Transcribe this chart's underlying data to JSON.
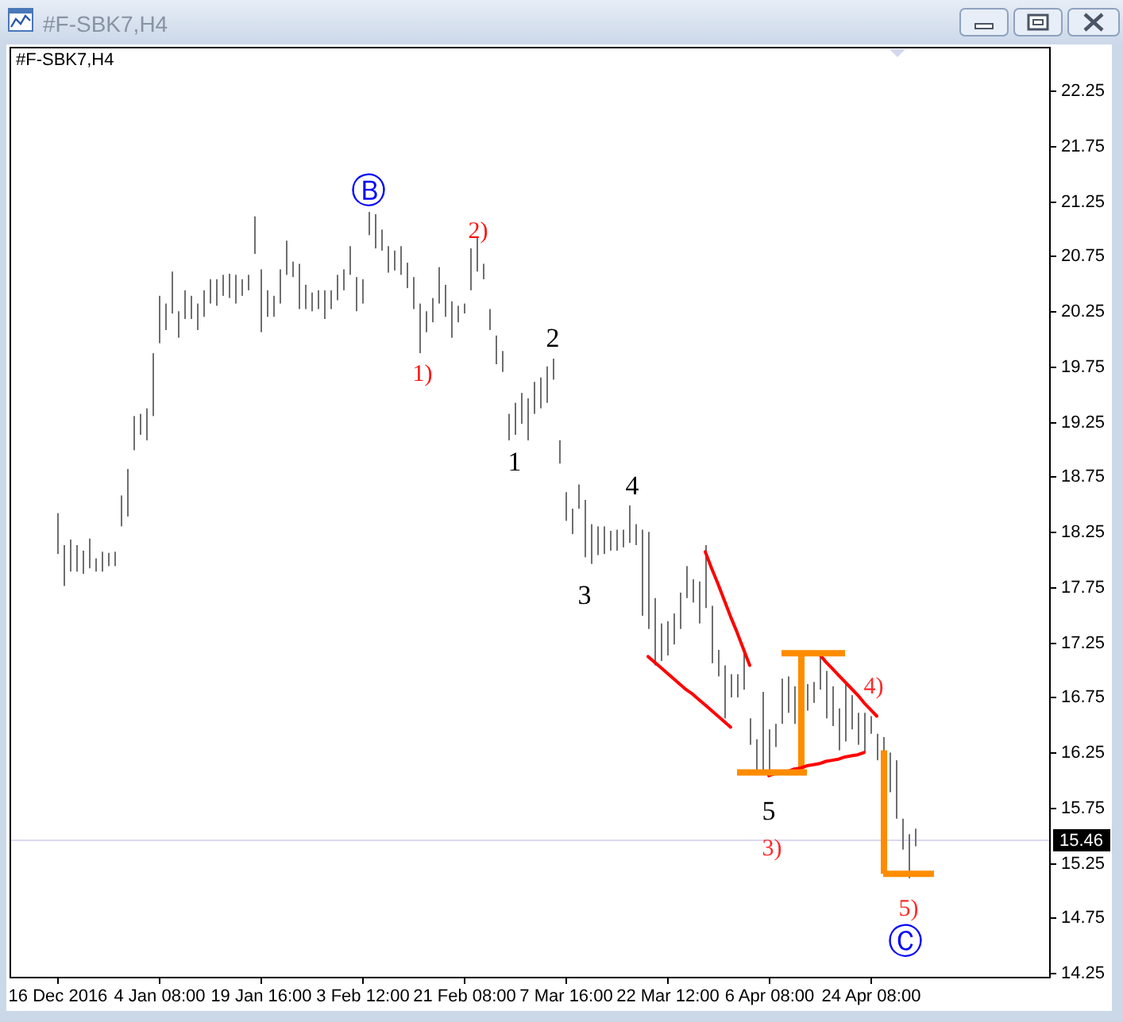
{
  "chart_data": {
    "type": "bar",
    "title": "#F-SBK7,H4",
    "categories": [
      "16 Dec 2016",
      null,
      null,
      null,
      null,
      null,
      null,
      null,
      null,
      null,
      null,
      null,
      null,
      null,
      null,
      null,
      "4 Jan 08:00",
      null,
      null,
      null,
      null,
      null,
      null,
      null,
      null,
      null,
      null,
      null,
      null,
      null,
      null,
      null,
      "19 Jan 16:00",
      null,
      null,
      null,
      null,
      null,
      null,
      null,
      null,
      null,
      null,
      null,
      null,
      null,
      null,
      null,
      "3 Feb 12:00",
      null,
      null,
      null,
      null,
      null,
      null,
      null,
      null,
      null,
      null,
      null,
      null,
      null,
      null,
      null,
      "21 Feb 08:00",
      null,
      null,
      null,
      null,
      null,
      null,
      null,
      null,
      null,
      null,
      null,
      null,
      null,
      null,
      null,
      "7 Mar 16:00",
      null,
      null,
      null,
      null,
      null,
      null,
      null,
      null,
      null,
      null,
      null,
      null,
      null,
      null,
      null,
      "22 Mar 12:00",
      null,
      null,
      null,
      null,
      null,
      null,
      null,
      null,
      null,
      null,
      null,
      null,
      null,
      null,
      null,
      "6 Apr 08:00",
      null,
      null,
      null,
      null,
      null,
      null,
      null,
      null,
      null,
      null,
      null,
      null,
      null,
      null,
      null,
      "24 Apr 08:00",
      null,
      null,
      null,
      null,
      null,
      null,
      null,
      null,
      null,
      null,
      null,
      null,
      null,
      null,
      null,
      null,
      null,
      null,
      null,
      null,
      null,
      null,
      null,
      null,
      null,
      null,
      null,
      null
    ],
    "series": [
      {
        "color": "#6f6f6f",
        "base": [
          18.05,
          17.76,
          17.89,
          17.89,
          17.87,
          17.92,
          17.89,
          17.89,
          17.94,
          17.94,
          18.3,
          18.39,
          18.99,
          19.13,
          19.08,
          19.3,
          19.96,
          20.08,
          20.23,
          20.01,
          20.18,
          20.18,
          20.08,
          20.2,
          20.32,
          20.3,
          20.39,
          20.37,
          20.32,
          20.39,
          20.44,
          20.77,
          20.06,
          20.2,
          20.2,
          20.32,
          20.58,
          20.56,
          20.27,
          20.27,
          20.25,
          20.27,
          20.18,
          20.27,
          20.35,
          20.44,
          20.58,
          20.25,
          20.32,
          20.94,
          20.82,
          20.8,
          20.6,
          20.62,
          20.58,
          20.46,
          20.27,
          19.87,
          20.06,
          20.15,
          20.32,
          20.2,
          20.01,
          20.15,
          20.23,
          20.44,
          20.61,
          20.54,
          20.08,
          19.77,
          19.7,
          19.08,
          19.13,
          19.23,
          19.08,
          19.32,
          19.37,
          19.42,
          19.63,
          18.87,
          18.35,
          18.23,
          18.46,
          18.02,
          17.96,
          18.04,
          18.05,
          18.08,
          18.08,
          18.11,
          18.15,
          18.13,
          17.49,
          17.37,
          17.04,
          17.08,
          17.13,
          17.23,
          17.37,
          17.65,
          17.61,
          17.42,
          17.56,
          17.06,
          16.94,
          16.56,
          16.75,
          16.75,
          16.82,
          16.32,
          16.08,
          16.08,
          16.04,
          16.3,
          16.51,
          16.61,
          16.51,
          null,
          16.63,
          16.7,
          16.82,
          16.56,
          16.49,
          16.27,
          16.35,
          16.46,
          16.32,
          16.25,
          16.42,
          16.18,
          16.18,
          15.89,
          15.65,
          15.37,
          15.11,
          15.4,
          null,
          null,
          null,
          null,
          null,
          null,
          null,
          null,
          null,
          null,
          null,
          null,
          null,
          null,
          null,
          null,
          null,
          null,
          null,
          null,
          null
        ],
        "values": [
          0.37,
          0.37,
          0.29,
          0.24,
          0.21,
          0.27,
          0.12,
          0.18,
          0.12,
          0.13,
          0.28,
          0.43,
          0.31,
          0.19,
          0.29,
          0.57,
          0.43,
          0.24,
          0.38,
          0.24,
          0.26,
          0.21,
          0.24,
          0.24,
          0.22,
          0.24,
          0.19,
          0.22,
          0.26,
          0.15,
          0.14,
          0.34,
          0.57,
          0.24,
          0.19,
          0.31,
          0.31,
          0.14,
          0.41,
          0.22,
          0.17,
          0.17,
          0.26,
          0.17,
          0.23,
          0.19,
          0.26,
          0.31,
          0.22,
          0.21,
          0.31,
          0.19,
          0.24,
          0.18,
          0.26,
          0.23,
          0.29,
          0.45,
          0.19,
          0.22,
          0.33,
          0.29,
          0.33,
          0.15,
          0.09,
          0.38,
          0.31,
          0.14,
          0.19,
          0.26,
          0.19,
          0.24,
          0.29,
          0.28,
          0.38,
          0.29,
          0.28,
          0.33,
          0.19,
          0.21,
          0.26,
          0.23,
          0.22,
          0.52,
          0.36,
          0.26,
          0.25,
          0.18,
          0.19,
          0.16,
          0.34,
          0.19,
          0.78,
          0.88,
          0.61,
          0.34,
          0.31,
          0.28,
          0.33,
          0.29,
          0.21,
          0.38,
          0.57,
          0.52,
          0.24,
          0.48,
          0.21,
          0.21,
          0.36,
          0.24,
          0.29,
          0.72,
          0.42,
          0.21,
          0.41,
          0.33,
          0.34,
          null,
          0.24,
          0.19,
          0.31,
          0.43,
          0.36,
          0.38,
          0.52,
          0.31,
          0.29,
          0.36,
          0.16,
          0.24,
          0.21,
          0.36,
          0.53,
          0.28,
          0.4,
          0.16,
          null,
          null,
          null,
          null,
          null,
          null,
          null,
          null,
          null,
          null,
          null,
          null,
          null,
          null,
          null,
          null,
          null,
          null,
          null,
          null,
          null
        ]
      },
      {
        "color": "#ff8c00",
        "base": [
          null,
          null,
          null,
          null,
          null,
          null,
          null,
          null,
          null,
          null,
          null,
          null,
          null,
          null,
          null,
          null,
          null,
          null,
          null,
          null,
          null,
          null,
          null,
          null,
          null,
          null,
          null,
          null,
          null,
          null,
          null,
          null,
          null,
          null,
          null,
          null,
          null,
          null,
          null,
          null,
          null,
          null,
          null,
          null,
          null,
          null,
          null,
          null,
          null,
          null,
          null,
          null,
          null,
          null,
          null,
          null,
          null,
          null,
          null,
          null,
          null,
          null,
          null,
          null,
          null,
          null,
          null,
          null,
          null,
          null,
          null,
          null,
          null,
          null,
          null,
          null,
          null,
          null,
          null,
          null,
          null,
          null,
          null,
          null,
          null,
          null,
          null,
          null,
          null,
          null,
          null,
          null,
          null,
          null,
          null,
          null,
          null,
          null,
          null,
          null,
          null,
          null,
          null,
          null,
          null,
          null,
          null,
          null,
          null,
          null,
          null,
          null,
          null,
          null,
          null,
          null,
          null,
          16.07,
          null,
          null,
          null,
          null,
          null,
          null,
          null,
          null,
          null,
          null,
          null,
          null,
          15.15,
          null,
          null,
          null,
          null,
          null,
          null,
          null,
          null,
          null,
          null,
          null,
          null,
          null,
          null,
          null,
          null,
          null,
          null,
          null,
          null,
          null,
          null,
          null,
          null,
          null,
          null
        ],
        "values": [
          null,
          null,
          null,
          null,
          null,
          null,
          null,
          null,
          null,
          null,
          null,
          null,
          null,
          null,
          null,
          null,
          null,
          null,
          null,
          null,
          null,
          null,
          null,
          null,
          null,
          null,
          null,
          null,
          null,
          null,
          null,
          null,
          null,
          null,
          null,
          null,
          null,
          null,
          null,
          null,
          null,
          null,
          null,
          null,
          null,
          null,
          null,
          null,
          null,
          null,
          null,
          null,
          null,
          null,
          null,
          null,
          null,
          null,
          null,
          null,
          null,
          null,
          null,
          null,
          null,
          null,
          null,
          null,
          null,
          null,
          null,
          null,
          null,
          null,
          null,
          null,
          null,
          null,
          null,
          null,
          null,
          null,
          null,
          null,
          null,
          null,
          null,
          null,
          null,
          null,
          null,
          null,
          null,
          null,
          null,
          null,
          null,
          null,
          null,
          null,
          null,
          null,
          null,
          null,
          null,
          null,
          null,
          null,
          null,
          null,
          null,
          null,
          null,
          null,
          null,
          null,
          null,
          1.08,
          null,
          null,
          null,
          null,
          null,
          null,
          null,
          null,
          null,
          null,
          null,
          null,
          1.12,
          null,
          null,
          null,
          null,
          null,
          null,
          null,
          null,
          null,
          null,
          null,
          null,
          null,
          null,
          null,
          null,
          null,
          null,
          null,
          null,
          null,
          null,
          null,
          null,
          null,
          null
        ]
      },
      {
        "type": "line",
        "color": "#ff0000",
        "values": [
          null,
          null,
          null,
          null,
          null,
          null,
          null,
          null,
          null,
          null,
          null,
          null,
          null,
          null,
          null,
          null,
          null,
          null,
          null,
          null,
          null,
          null,
          null,
          null,
          null,
          null,
          null,
          null,
          null,
          null,
          null,
          null,
          null,
          null,
          null,
          null,
          null,
          null,
          null,
          null,
          null,
          null,
          null,
          null,
          null,
          null,
          null,
          null,
          null,
          null,
          null,
          null,
          null,
          null,
          null,
          null,
          null,
          null,
          null,
          null,
          null,
          null,
          null,
          null,
          null,
          null,
          null,
          null,
          null,
          null,
          null,
          null,
          null,
          null,
          null,
          null,
          null,
          null,
          null,
          null,
          null,
          null,
          null,
          null,
          null,
          null,
          null,
          null,
          null,
          null,
          null,
          null,
          null,
          null,
          null,
          null,
          null,
          null,
          null,
          null,
          null,
          null,
          18.07,
          17.92,
          17.78,
          17.63,
          17.48,
          17.34,
          17.19,
          17.04,
          null,
          null,
          null,
          null,
          null,
          null,
          null,
          null,
          null,
          null,
          null,
          null,
          null,
          null,
          null,
          null,
          null,
          null,
          null,
          null,
          null,
          null,
          null,
          null,
          null,
          null,
          null,
          null,
          null,
          null,
          null,
          null,
          null,
          null,
          null,
          null,
          null,
          null,
          null,
          null,
          null,
          null,
          null,
          null,
          null,
          null,
          null
        ]
      },
      {
        "type": "line",
        "color": "#ff0000",
        "values": [
          null,
          null,
          null,
          null,
          null,
          null,
          null,
          null,
          null,
          null,
          null,
          null,
          null,
          null,
          null,
          null,
          null,
          null,
          null,
          null,
          null,
          null,
          null,
          null,
          null,
          null,
          null,
          null,
          null,
          null,
          null,
          null,
          null,
          null,
          null,
          null,
          null,
          null,
          null,
          null,
          null,
          null,
          null,
          null,
          null,
          null,
          null,
          null,
          null,
          null,
          null,
          null,
          null,
          null,
          null,
          null,
          null,
          null,
          null,
          null,
          null,
          null,
          null,
          null,
          null,
          null,
          null,
          null,
          null,
          null,
          null,
          null,
          null,
          null,
          null,
          null,
          null,
          null,
          null,
          null,
          null,
          null,
          null,
          null,
          null,
          null,
          null,
          null,
          null,
          null,
          null,
          null,
          null,
          17.12,
          17.07,
          17.02,
          16.97,
          16.92,
          16.87,
          16.82,
          16.78,
          16.73,
          16.68,
          16.63,
          16.58,
          16.53,
          16.48,
          null,
          null,
          null,
          null,
          null,
          null,
          null,
          null,
          null,
          null,
          null,
          null,
          null,
          null,
          null,
          null,
          null,
          null,
          null,
          null,
          null,
          null,
          null,
          null,
          null,
          null,
          null,
          null,
          null,
          null,
          null,
          null,
          null,
          null,
          null,
          null,
          null,
          null,
          null,
          null,
          null,
          null,
          null,
          null,
          null,
          null,
          null,
          null,
          null,
          null
        ]
      },
      {
        "type": "line",
        "color": "#ff0000",
        "values": [
          null,
          null,
          null,
          null,
          null,
          null,
          null,
          null,
          null,
          null,
          null,
          null,
          null,
          null,
          null,
          null,
          null,
          null,
          null,
          null,
          null,
          null,
          null,
          null,
          null,
          null,
          null,
          null,
          null,
          null,
          null,
          null,
          null,
          null,
          null,
          null,
          null,
          null,
          null,
          null,
          null,
          null,
          null,
          null,
          null,
          null,
          null,
          null,
          null,
          null,
          null,
          null,
          null,
          null,
          null,
          null,
          null,
          null,
          null,
          null,
          null,
          null,
          null,
          null,
          null,
          null,
          null,
          null,
          null,
          null,
          null,
          null,
          null,
          null,
          null,
          null,
          null,
          null,
          null,
          null,
          null,
          null,
          null,
          null,
          null,
          null,
          null,
          null,
          null,
          null,
          null,
          null,
          null,
          null,
          null,
          null,
          null,
          null,
          null,
          null,
          null,
          null,
          null,
          null,
          null,
          null,
          null,
          null,
          null,
          null,
          null,
          null,
          null,
          null,
          null,
          null,
          null,
          null,
          null,
          null,
          17.14,
          17.07,
          17.01,
          16.95,
          16.89,
          16.83,
          16.77,
          16.7,
          16.64,
          16.58,
          null,
          null,
          null,
          null,
          null,
          null,
          null,
          null,
          null,
          null,
          null,
          null,
          null,
          null,
          null,
          null,
          null,
          null,
          null,
          null,
          null,
          null,
          null,
          null,
          null,
          null,
          null
        ]
      },
      {
        "type": "line",
        "color": "#ff0000",
        "values": [
          null,
          null,
          null,
          null,
          null,
          null,
          null,
          null,
          null,
          null,
          null,
          null,
          null,
          null,
          null,
          null,
          null,
          null,
          null,
          null,
          null,
          null,
          null,
          null,
          null,
          null,
          null,
          null,
          null,
          null,
          null,
          null,
          null,
          null,
          null,
          null,
          null,
          null,
          null,
          null,
          null,
          null,
          null,
          null,
          null,
          null,
          null,
          null,
          null,
          null,
          null,
          null,
          null,
          null,
          null,
          null,
          null,
          null,
          null,
          null,
          null,
          null,
          null,
          null,
          null,
          null,
          null,
          null,
          null,
          null,
          null,
          null,
          null,
          null,
          null,
          null,
          null,
          null,
          null,
          null,
          null,
          null,
          null,
          null,
          null,
          null,
          null,
          null,
          null,
          null,
          null,
          null,
          null,
          null,
          null,
          null,
          null,
          null,
          null,
          null,
          null,
          null,
          null,
          null,
          null,
          null,
          null,
          null,
          null,
          null,
          null,
          null,
          16.04,
          16.06,
          16.07,
          16.08,
          16.1,
          16.11,
          16.13,
          16.14,
          16.15,
          16.17,
          16.18,
          16.19,
          16.21,
          16.22,
          16.23,
          16.25,
          null,
          null,
          null,
          null,
          null,
          null,
          null,
          null,
          null,
          null,
          null,
          null,
          null,
          null,
          null,
          null,
          null,
          null,
          null,
          null,
          null,
          null,
          null,
          null,
          null,
          null,
          null,
          null,
          null
        ]
      },
      {
        "type": "line",
        "color": "#ff8c00",
        "values": [
          null,
          null,
          null,
          null,
          null,
          null,
          null,
          null,
          null,
          null,
          null,
          null,
          null,
          null,
          null,
          null,
          null,
          null,
          null,
          null,
          null,
          null,
          null,
          null,
          null,
          null,
          null,
          null,
          null,
          null,
          null,
          null,
          null,
          null,
          null,
          null,
          null,
          null,
          null,
          null,
          null,
          null,
          null,
          null,
          null,
          null,
          null,
          null,
          null,
          null,
          null,
          null,
          null,
          null,
          null,
          null,
          null,
          null,
          null,
          null,
          null,
          null,
          null,
          null,
          null,
          null,
          null,
          null,
          null,
          null,
          null,
          null,
          null,
          null,
          null,
          null,
          null,
          null,
          null,
          null,
          null,
          null,
          null,
          null,
          null,
          null,
          null,
          null,
          null,
          null,
          null,
          null,
          null,
          null,
          null,
          null,
          null,
          null,
          null,
          null,
          null,
          null,
          null,
          null,
          null,
          null,
          null,
          16.07,
          16.07,
          16.07,
          16.07,
          16.07,
          16.07,
          16.07,
          16.07,
          16.07,
          16.07,
          16.07,
          16.07,
          null,
          null,
          null,
          null,
          null,
          null,
          null,
          null,
          null,
          null,
          null,
          null,
          null,
          null,
          null,
          null,
          null,
          null,
          null,
          null,
          null,
          null,
          null,
          null,
          null,
          null,
          null,
          null,
          null,
          null,
          null,
          null,
          null,
          null,
          null,
          null,
          null,
          null
        ]
      },
      {
        "type": "line",
        "color": "#ff8c00",
        "values": [
          null,
          null,
          null,
          null,
          null,
          null,
          null,
          null,
          null,
          null,
          null,
          null,
          null,
          null,
          null,
          null,
          null,
          null,
          null,
          null,
          null,
          null,
          null,
          null,
          null,
          null,
          null,
          null,
          null,
          null,
          null,
          null,
          null,
          null,
          null,
          null,
          null,
          null,
          null,
          null,
          null,
          null,
          null,
          null,
          null,
          null,
          null,
          null,
          null,
          null,
          null,
          null,
          null,
          null,
          null,
          null,
          null,
          null,
          null,
          null,
          null,
          null,
          null,
          null,
          null,
          null,
          null,
          null,
          null,
          null,
          null,
          null,
          null,
          null,
          null,
          null,
          null,
          null,
          null,
          null,
          null,
          null,
          null,
          null,
          null,
          null,
          null,
          null,
          null,
          null,
          null,
          null,
          null,
          null,
          null,
          null,
          null,
          null,
          null,
          null,
          null,
          null,
          null,
          null,
          null,
          null,
          null,
          null,
          null,
          null,
          null,
          null,
          null,
          null,
          17.15,
          17.15,
          17.15,
          17.15,
          17.15,
          17.15,
          17.15,
          17.15,
          17.15,
          17.15,
          17.15,
          null,
          null,
          null,
          null,
          null,
          null,
          null,
          null,
          null,
          null,
          null,
          null,
          null,
          null,
          null,
          null,
          null,
          null,
          null,
          null,
          null,
          null,
          null,
          null,
          null,
          null,
          null,
          null,
          null,
          null,
          null,
          null
        ]
      },
      {
        "type": "line",
        "color": "#ff8c00",
        "values": [
          null,
          null,
          null,
          null,
          null,
          null,
          null,
          null,
          null,
          null,
          null,
          null,
          null,
          null,
          null,
          null,
          null,
          null,
          null,
          null,
          null,
          null,
          null,
          null,
          null,
          null,
          null,
          null,
          null,
          null,
          null,
          null,
          null,
          null,
          null,
          null,
          null,
          null,
          null,
          null,
          null,
          null,
          null,
          null,
          null,
          null,
          null,
          null,
          null,
          null,
          null,
          null,
          null,
          null,
          null,
          null,
          null,
          null,
          null,
          null,
          null,
          null,
          null,
          null,
          null,
          null,
          null,
          null,
          null,
          null,
          null,
          null,
          null,
          null,
          null,
          null,
          null,
          null,
          null,
          null,
          null,
          null,
          null,
          null,
          null,
          null,
          null,
          null,
          null,
          null,
          null,
          null,
          null,
          null,
          null,
          null,
          null,
          null,
          null,
          null,
          null,
          null,
          null,
          null,
          null,
          null,
          null,
          null,
          null,
          null,
          null,
          null,
          null,
          null,
          null,
          null,
          null,
          null,
          null,
          null,
          null,
          null,
          null,
          null,
          null,
          null,
          null,
          null,
          null,
          null,
          15.15,
          15.15,
          15.15,
          15.15,
          15.15,
          15.15,
          15.15,
          15.15,
          15.15,
          null,
          null,
          null,
          null,
          null,
          null,
          null,
          null,
          null,
          null,
          null,
          null,
          null,
          null,
          null,
          null,
          null,
          null
        ]
      }
    ],
    "ylim": [
      14.21,
      22.64
    ],
    "yticks": [
      14.25,
      14.75,
      15.25,
      15.75,
      16.25,
      16.75,
      17.25,
      17.75,
      18.25,
      18.75,
      19.25,
      19.75,
      20.25,
      20.75,
      21.25,
      21.75,
      22.25
    ],
    "ref_lines": [
      {
        "axis": "y",
        "value": 15.46,
        "label": "15.46",
        "color": "#dcd8f0"
      }
    ],
    "annotations": [
      "Ⓑ",
      "1)",
      "2)",
      "1",
      "2",
      "3",
      "4",
      "5",
      "3)",
      "4)",
      "5)",
      "Ⓒ"
    ]
  }
}
